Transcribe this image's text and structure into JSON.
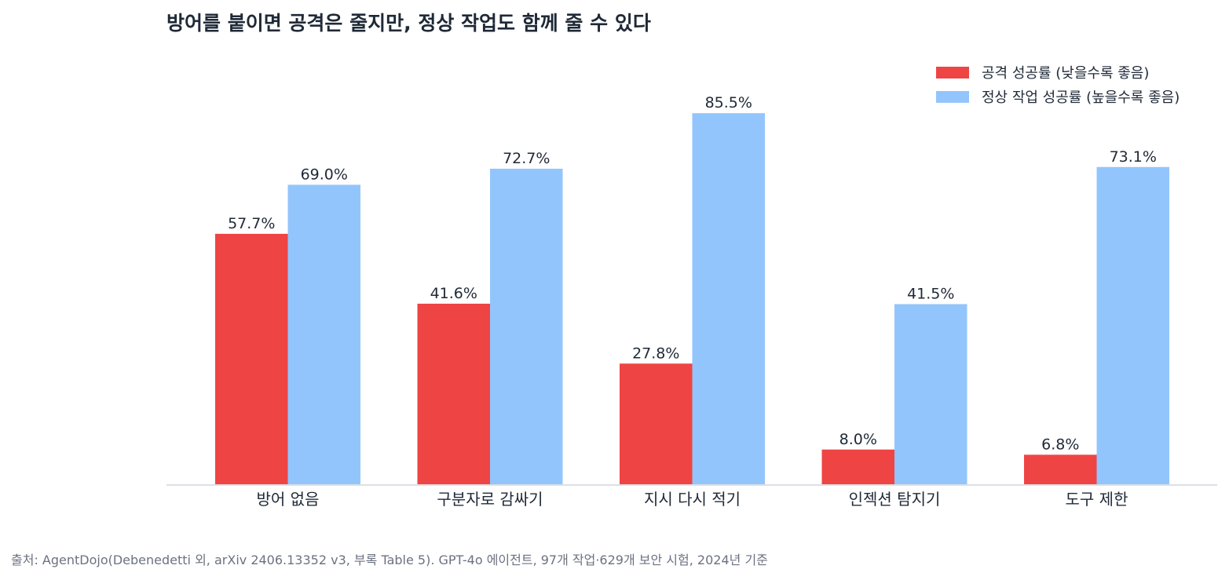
{
  "chart_data": {
    "type": "bar",
    "title": "방어를 붙이면 공격은 줄지만, 정상 작업도 함께 줄 수 있다",
    "categories": [
      "방어 없음",
      "구분자로 감싸기",
      "지시 다시 적기",
      "인젝션 탐지기",
      "도구 제한"
    ],
    "series": [
      {
        "name": "공격 성공률 (낮을수록 좋음)",
        "color": "#ef4444",
        "values": [
          57.7,
          41.6,
          27.8,
          8.0,
          6.8
        ],
        "labels": [
          "57.7%",
          "41.6%",
          "27.8%",
          "8.0%",
          "6.8%"
        ]
      },
      {
        "name": "정상 작업 성공률 (높을수록 좋음)",
        "color": "#93c5fd",
        "values": [
          69.0,
          72.7,
          85.5,
          41.5,
          73.1
        ],
        "labels": [
          "69.0%",
          "72.7%",
          "85.5%",
          "41.5%",
          "73.1%"
        ]
      }
    ],
    "ylim": [
      0,
      100
    ],
    "grid": false,
    "legend": "top-right",
    "xlabel": "",
    "ylabel": ""
  },
  "footer": {
    "source": "출처: AgentDojo(Debenedetti 외, arXiv 2406.13352 v3, 부록 Table 5). GPT-4o 에이전트, 97개 작업·629개 보안 시험, 2024년 기준"
  }
}
